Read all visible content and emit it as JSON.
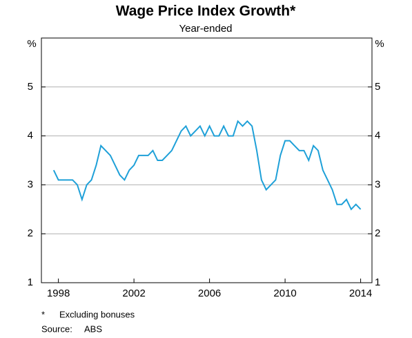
{
  "chart_data": {
    "type": "line",
    "title": "Wage Price Index Growth*",
    "subtitle": "Year-ended",
    "y_unit": "%",
    "x": [
      1997.75,
      1998.0,
      1998.25,
      1998.5,
      1998.75,
      1999.0,
      1999.25,
      1999.5,
      1999.75,
      2000.0,
      2000.25,
      2000.5,
      2000.75,
      2001.0,
      2001.25,
      2001.5,
      2001.75,
      2002.0,
      2002.25,
      2002.5,
      2002.75,
      2003.0,
      2003.25,
      2003.5,
      2003.75,
      2004.0,
      2004.25,
      2004.5,
      2004.75,
      2005.0,
      2005.25,
      2005.5,
      2005.75,
      2006.0,
      2006.25,
      2006.5,
      2006.75,
      2007.0,
      2007.25,
      2007.5,
      2007.75,
      2008.0,
      2008.25,
      2008.5,
      2008.75,
      2009.0,
      2009.25,
      2009.5,
      2009.75,
      2010.0,
      2010.25,
      2010.5,
      2010.75,
      2011.0,
      2011.25,
      2011.5,
      2011.75,
      2012.0,
      2012.25,
      2012.5,
      2012.75,
      2013.0,
      2013.25,
      2013.5,
      2013.75,
      2014.0
    ],
    "series": [
      {
        "name": "Wage Price Index",
        "color": "#1ea0d8",
        "values": [
          3.3,
          3.1,
          3.1,
          3.1,
          3.1,
          3.0,
          2.7,
          3.0,
          3.1,
          3.4,
          3.8,
          3.7,
          3.6,
          3.4,
          3.2,
          3.1,
          3.3,
          3.4,
          3.6,
          3.6,
          3.6,
          3.7,
          3.5,
          3.5,
          3.6,
          3.7,
          3.9,
          4.1,
          4.2,
          4.0,
          4.1,
          4.2,
          4.0,
          4.2,
          4.0,
          4.0,
          4.2,
          4.0,
          4.0,
          4.3,
          4.2,
          4.3,
          4.2,
          3.7,
          3.1,
          2.9,
          3.0,
          3.1,
          3.6,
          3.9,
          3.9,
          3.8,
          3.7,
          3.7,
          3.5,
          3.8,
          3.7,
          3.3,
          3.1,
          2.9,
          2.6,
          2.6,
          2.7,
          2.5,
          2.6,
          2.5
        ]
      }
    ],
    "xlim": [
      1997.1,
      2014.6
    ],
    "xticks": [
      1998,
      2002,
      2006,
      2010,
      2014
    ],
    "ylim": [
      1,
      6
    ],
    "yticks": [
      1,
      2,
      3,
      4,
      5
    ],
    "grid": true,
    "footnote": {
      "marker": "*",
      "text": "Excluding bonuses"
    },
    "source": {
      "label": "Source:",
      "text": "ABS"
    }
  }
}
